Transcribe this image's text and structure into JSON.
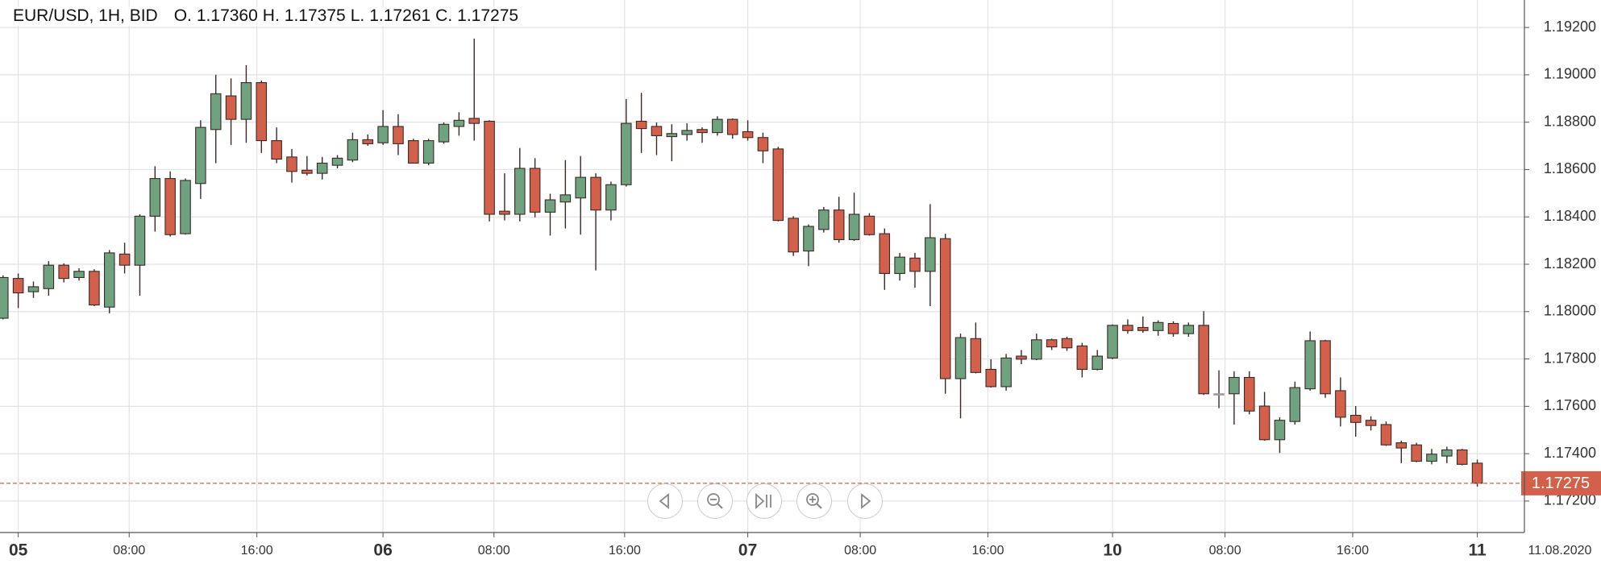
{
  "chart_data": {
    "type": "candlestick",
    "title": "EUR/USD, 1H, BID",
    "ohlc_prefixes": [
      "O.",
      "H.",
      "L.",
      "C."
    ],
    "last_value_labels": [
      "1.17360",
      "1.17375",
      "1.17261",
      "1.17275"
    ],
    "x": [
      0,
      1,
      2,
      3,
      4,
      5,
      6,
      7,
      8,
      9,
      10,
      11,
      12,
      13,
      14,
      15,
      16,
      17,
      18,
      19,
      20,
      21,
      22,
      23,
      24,
      25,
      26,
      27,
      28,
      29,
      30,
      31,
      32,
      33,
      34,
      35,
      36,
      37,
      38,
      39,
      40,
      41,
      42,
      43,
      44,
      45,
      46,
      47,
      48,
      49,
      50,
      51,
      52,
      53,
      54,
      55,
      56,
      57,
      58,
      59,
      60,
      61,
      62,
      63,
      64,
      65,
      66,
      67,
      68,
      69,
      70,
      71,
      72,
      73,
      74,
      75,
      76,
      77,
      78,
      79,
      80,
      81,
      82,
      83,
      84,
      85,
      86,
      87,
      88,
      89,
      90,
      91,
      92,
      93,
      94,
      95,
      96,
      97
    ],
    "open": [
      1.17972,
      1.1814,
      1.18084,
      1.18097,
      1.18196,
      1.18144,
      1.1817,
      1.18019,
      1.18243,
      1.18196,
      1.18403,
      1.18562,
      1.18329,
      1.18541,
      1.18769,
      1.18911,
      1.18812,
      1.18967,
      1.18722,
      1.18653,
      1.18597,
      1.18584,
      1.18618,
      1.1864,
      1.18726,
      1.18713,
      1.18782,
      1.18722,
      1.18627,
      1.18717,
      1.18782,
      1.18816,
      1.18804,
      1.18424,
      1.18411,
      1.18605,
      1.1842,
      1.18463,
      1.1848,
      1.18567,
      1.18429,
      1.18536,
      1.18804,
      1.18782,
      1.18739,
      1.18748,
      1.18769,
      1.18756,
      1.18812,
      1.1876,
      1.18735,
      1.18687,
      1.18394,
      1.18256,
      1.18347,
      1.18429,
      1.18304,
      1.18403,
      1.18329,
      1.18161,
      1.18226,
      1.1817,
      1.18308,
      1.17717,
      1.17886,
      1.17756,
      1.17683,
      1.17812,
      1.17799,
      1.17881,
      1.17886,
      1.17855,
      1.17756,
      1.17804,
      1.17942,
      1.17933,
      1.1792,
      1.1795,
      1.17907,
      1.17942,
      1.17653,
      1.17653,
      1.17722,
      1.17601,
      1.17459,
      1.17536,
      1.17674,
      1.17877,
      1.17666,
      1.17562,
      1.17541,
      1.17523,
      1.17446,
      1.17437,
      1.17368,
      1.1739,
      1.17416,
      1.1736
    ],
    "high": [
      1.18153,
      1.18161,
      1.18127,
      1.18213,
      1.18204,
      1.18183,
      1.18179,
      1.1826,
      1.18291,
      1.18411,
      1.18614,
      1.18592,
      1.18562,
      1.18808,
      1.19,
      1.18985,
      1.19041,
      1.18976,
      1.18778,
      1.18687,
      1.18657,
      1.18653,
      1.18661,
      1.18756,
      1.18748,
      1.18851,
      1.18834,
      1.1873,
      1.1873,
      1.18799,
      1.18842,
      1.19153,
      1.18808,
      1.18584,
      1.18691,
      1.18648,
      1.18498,
      1.1864,
      1.18657,
      1.18584,
      1.18549,
      1.18898,
      1.18924,
      1.18799,
      1.18791,
      1.18795,
      1.18778,
      1.18825,
      1.18816,
      1.18808,
      1.18756,
      1.18696,
      1.18403,
      1.18368,
      1.18442,
      1.18485,
      1.18502,
      1.18416,
      1.18351,
      1.18248,
      1.18248,
      1.18454,
      1.18329,
      1.17907,
      1.17954,
      1.17799,
      1.17821,
      1.17838,
      1.17907,
      1.17886,
      1.17894,
      1.17868,
      1.17838,
      1.17946,
      1.17967,
      1.1798,
      1.17963,
      1.17959,
      1.17954,
      1.18002,
      1.17752,
      1.17748,
      1.17748,
      1.17661,
      1.17554,
      1.17704,
      1.17916,
      1.17881,
      1.17722,
      1.17601,
      1.17558,
      1.17536,
      1.17455,
      1.17446,
      1.1742,
      1.17429,
      1.1742,
      1.17375
    ],
    "low": [
      1.17967,
      1.18015,
      1.18058,
      1.18067,
      1.18123,
      1.18131,
      1.18023,
      1.17993,
      1.18161,
      1.18067,
      1.18338,
      1.18317,
      1.18325,
      1.18476,
      1.18627,
      1.18704,
      1.18713,
      1.1867,
      1.18627,
      1.18545,
      1.18575,
      1.18558,
      1.18605,
      1.18631,
      1.187,
      1.18704,
      1.18661,
      1.18627,
      1.18618,
      1.18709,
      1.18743,
      1.18722,
      1.18381,
      1.18385,
      1.18381,
      1.18398,
      1.18321,
      1.18351,
      1.18325,
      1.18174,
      1.18385,
      1.18528,
      1.1867,
      1.18661,
      1.18635,
      1.18722,
      1.18713,
      1.18743,
      1.1873,
      1.18722,
      1.18627,
      1.18381,
      1.18235,
      1.18192,
      1.18334,
      1.18291,
      1.18299,
      1.18321,
      1.18092,
      1.18131,
      1.18101,
      1.18023,
      1.17653,
      1.17549,
      1.17739,
      1.17679,
      1.17666,
      1.17778,
      1.17795,
      1.17838,
      1.17834,
      1.17722,
      1.17752,
      1.17799,
      1.17907,
      1.17911,
      1.17898,
      1.17894,
      1.17894,
      1.17648,
      1.17592,
      1.17523,
      1.17566,
      1.17455,
      1.17403,
      1.17523,
      1.17666,
      1.17636,
      1.17515,
      1.17472,
      1.17498,
      1.17433,
      1.1736,
      1.17364,
      1.17355,
      1.1736,
      1.17351,
      1.17261
    ],
    "close": [
      1.18144,
      1.18079,
      1.18105,
      1.18196,
      1.1814,
      1.1817,
      1.18028,
      1.18248,
      1.18196,
      1.18403,
      1.18562,
      1.18325,
      1.18554,
      1.18778,
      1.1892,
      1.18812,
      1.18967,
      1.18722,
      1.18644,
      1.18592,
      1.18584,
      1.18627,
      1.18648,
      1.18726,
      1.18709,
      1.18782,
      1.18709,
      1.18627,
      1.18722,
      1.18791,
      1.18808,
      1.18795,
      1.18411,
      1.18411,
      1.18605,
      1.1842,
      1.18472,
      1.18493,
      1.18567,
      1.18429,
      1.18536,
      1.18795,
      1.18773,
      1.18743,
      1.18752,
      1.18765,
      1.18756,
      1.18812,
      1.18748,
      1.18735,
      1.18679,
      1.18385,
      1.18252,
      1.1836,
      1.18429,
      1.18304,
      1.18411,
      1.18325,
      1.18161,
      1.1823,
      1.1817,
      1.18312,
      1.17717,
      1.1789,
      1.17743,
      1.17683,
      1.17804,
      1.17799,
      1.17881,
      1.17851,
      1.17847,
      1.17756,
      1.17812,
      1.17942,
      1.1792,
      1.1792,
      1.17954,
      1.17907,
      1.17942,
      1.17653,
      1.17653,
      1.17722,
      1.1758,
      1.17459,
      1.17541,
      1.17679,
      1.17877,
      1.17653,
      1.17554,
      1.17532,
      1.17519,
      1.17437,
      1.17424,
      1.17368,
      1.17398,
      1.17416,
      1.17355,
      1.17275
    ],
    "up_color": "#6fa27f",
    "down_color": "#d2604b",
    "doji_color": "#999999",
    "wick_color": "#3a2a26",
    "xlim": [
      -0.2,
      100.1
    ],
    "ylim": [
      1.17067,
      1.19316
    ],
    "yticks": [
      {
        "value": 1.172,
        "label": "1.17200"
      },
      {
        "value": 1.174,
        "label": "1.17400"
      },
      {
        "value": 1.176,
        "label": "1.17600"
      },
      {
        "value": 1.178,
        "label": "1.17800"
      },
      {
        "value": 1.18,
        "label": "1.18000"
      },
      {
        "value": 1.182,
        "label": "1.18200"
      },
      {
        "value": 1.184,
        "label": "1.18400"
      },
      {
        "value": 1.186,
        "label": "1.18600"
      },
      {
        "value": 1.188,
        "label": "1.18800"
      },
      {
        "value": 1.19,
        "label": "1.19000"
      },
      {
        "value": 1.192,
        "label": "1.19200"
      }
    ],
    "xticks": [
      {
        "value": 1,
        "label": "05"
      },
      {
        "value": 8.3,
        "label": "08:00"
      },
      {
        "value": 16.7,
        "label": "16:00"
      },
      {
        "value": 25,
        "label": "06"
      },
      {
        "value": 32.3,
        "label": "08:00"
      },
      {
        "value": 40.9,
        "label": "16:00"
      },
      {
        "value": 49,
        "label": "07"
      },
      {
        "value": 56.4,
        "label": "08:00"
      },
      {
        "value": 64.8,
        "label": "16:00"
      },
      {
        "value": 73,
        "label": "10"
      },
      {
        "value": 80.4,
        "label": "08:00"
      },
      {
        "value": 88.8,
        "label": "16:00"
      },
      {
        "value": 97,
        "label": "11"
      }
    ],
    "date_label": "11.08.2020",
    "last_price": {
      "value": 1.17275,
      "label": "1.17275"
    },
    "last_price_color": "#d2604b",
    "grid": true
  }
}
